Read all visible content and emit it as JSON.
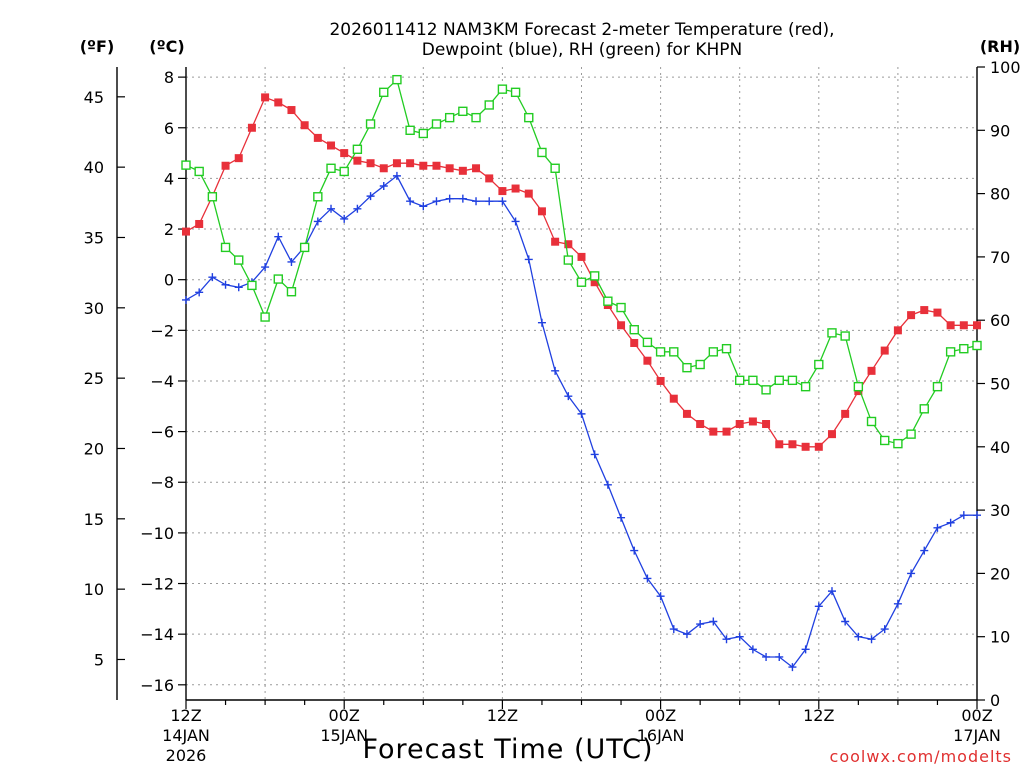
{
  "chart_data": {
    "type": "line",
    "title_line1": "2026011412 NAM3KM Forecast 2-meter Temperature (red),",
    "title_line2": "Dewpoint (blue), RH (green) for KHPN",
    "xlabel": "Forecast Time (UTC)",
    "watermark": "coolwx.com/modelts",
    "left_unit_f": "(ºF)",
    "left_unit_c": "(ºC)",
    "right_unit": "(RH)",
    "hours_range": [
      0,
      60
    ],
    "ylim_c": [
      -16.6,
      8.4
    ],
    "ylim_rh": [
      0,
      100
    ],
    "c_ticks": [
      8,
      6,
      4,
      2,
      0,
      -2,
      -4,
      -6,
      -8,
      -10,
      -12,
      -14,
      -16
    ],
    "c_tick_labels": [
      "8",
      "6",
      "4",
      "2",
      "0",
      "−2",
      "−4",
      "−6",
      "−8",
      "−10",
      "−12",
      "−14",
      "−16"
    ],
    "f_ticks": [
      45,
      40,
      35,
      30,
      25,
      20,
      15,
      10,
      5
    ],
    "f_tick_labels": [
      "45",
      "40",
      "35",
      "30",
      "25",
      "20",
      "15",
      "10",
      "5"
    ],
    "rh_ticks": [
      100,
      90,
      80,
      70,
      60,
      50,
      40,
      30,
      20,
      10,
      0
    ],
    "rh_tick_labels": [
      "100",
      "90",
      "80",
      "70",
      "60",
      "50",
      "40",
      "30",
      "20",
      "10",
      "0"
    ],
    "x_ticks": [
      {
        "hour": 0,
        "label": "12Z",
        "date": "14JAN",
        "year": "2026"
      },
      {
        "hour": 12,
        "label": "00Z",
        "date": "15JAN",
        "year": ""
      },
      {
        "hour": 24,
        "label": "12Z",
        "date": "",
        "year": ""
      },
      {
        "hour": 36,
        "label": "00Z",
        "date": "16JAN",
        "year": ""
      },
      {
        "hour": 48,
        "label": "12Z",
        "date": "",
        "year": ""
      },
      {
        "hour": 60,
        "label": "00Z",
        "date": "17JAN",
        "year": ""
      }
    ],
    "series": [
      {
        "name": "2-meter Temperature",
        "axis": "celsius",
        "color": "#e8303a",
        "marker": "filled-square",
        "x": [
          0,
          1,
          2,
          3,
          4,
          5,
          6,
          7,
          8,
          9,
          10,
          11,
          12,
          13,
          14,
          15,
          16,
          17,
          18,
          19,
          20,
          21,
          22,
          23,
          24,
          25,
          26,
          27,
          28,
          29,
          30,
          31,
          32,
          33,
          34,
          35,
          36,
          37,
          38,
          39,
          40,
          41,
          42,
          43,
          44,
          45,
          46,
          47,
          48,
          49,
          50,
          51,
          52,
          53,
          54,
          55,
          56,
          57,
          58,
          59,
          60
        ],
        "values": [
          1.9,
          2.2,
          3.3,
          4.5,
          4.8,
          6.0,
          7.2,
          7.0,
          6.7,
          6.1,
          5.6,
          5.3,
          5.0,
          4.7,
          4.6,
          4.4,
          4.6,
          4.6,
          4.5,
          4.5,
          4.4,
          4.3,
          4.4,
          4.0,
          3.5,
          3.6,
          3.4,
          2.7,
          1.5,
          1.4,
          0.9,
          -0.1,
          -1.0,
          -1.8,
          -2.5,
          -3.2,
          -4.0,
          -4.7,
          -5.3,
          -5.7,
          -6.0,
          -6.0,
          -5.7,
          -5.6,
          -5.7,
          -6.5,
          -6.5,
          -6.6,
          -6.6,
          -6.1,
          -5.3,
          -4.4,
          -3.6,
          -2.8,
          -2.0,
          -1.4,
          -1.2,
          -1.3,
          -1.8,
          -1.8,
          -1.8
        ]
      },
      {
        "name": "Dewpoint",
        "axis": "celsius",
        "color": "#2040e0",
        "marker": "plus",
        "x": [
          0,
          1,
          2,
          3,
          4,
          5,
          6,
          7,
          8,
          9,
          10,
          11,
          12,
          13,
          14,
          15,
          16,
          17,
          18,
          19,
          20,
          21,
          22,
          23,
          24,
          25,
          26,
          27,
          28,
          29,
          30,
          31,
          32,
          33,
          34,
          35,
          36,
          37,
          38,
          39,
          40,
          41,
          42,
          43,
          44,
          45,
          46,
          47,
          48,
          49,
          50,
          51,
          52,
          53,
          54,
          55,
          56,
          57,
          58,
          59,
          60
        ],
        "values": [
          -0.8,
          -0.5,
          0.1,
          -0.2,
          -0.3,
          -0.1,
          0.5,
          1.7,
          0.7,
          1.3,
          2.3,
          2.8,
          2.4,
          2.8,
          3.3,
          3.7,
          4.1,
          3.1,
          2.9,
          3.1,
          3.2,
          3.2,
          3.1,
          3.1,
          3.1,
          2.3,
          0.8,
          -1.7,
          -3.6,
          -4.6,
          -5.3,
          -6.9,
          -8.1,
          -9.4,
          -10.7,
          -11.8,
          -12.5,
          -13.8,
          -14.0,
          -13.6,
          -13.5,
          -14.2,
          -14.1,
          -14.6,
          -14.9,
          -14.9,
          -15.3,
          -14.6,
          -12.9,
          -12.3,
          -13.5,
          -14.1,
          -14.2,
          -13.8,
          -12.8,
          -11.6,
          -10.7,
          -9.8,
          -9.6,
          -9.3,
          -9.3
        ]
      },
      {
        "name": "Relative Humidity",
        "axis": "rh",
        "color": "#22cc22",
        "marker": "open-square",
        "x": [
          0,
          1,
          2,
          3,
          4,
          5,
          6,
          7,
          8,
          9,
          10,
          11,
          12,
          13,
          14,
          15,
          16,
          17,
          18,
          19,
          20,
          21,
          22,
          23,
          24,
          25,
          26,
          27,
          28,
          29,
          30,
          31,
          32,
          33,
          34,
          35,
          36,
          37,
          38,
          39,
          40,
          41,
          42,
          43,
          44,
          45,
          46,
          47,
          48,
          49,
          50,
          51,
          52,
          53,
          54,
          55,
          56,
          57,
          58,
          59,
          60
        ],
        "values": [
          84.5,
          83.5,
          79.5,
          71.5,
          69.5,
          65.5,
          60.5,
          66.5,
          64.5,
          71.5,
          79.5,
          84.0,
          83.5,
          87.0,
          91.0,
          96.0,
          98.0,
          90.0,
          89.5,
          91.0,
          92.0,
          93.0,
          92.0,
          94.0,
          96.5,
          96.0,
          92.0,
          86.5,
          84.0,
          69.5,
          66.0,
          67.0,
          63.0,
          62.0,
          58.5,
          56.5,
          55.0,
          55.0,
          52.5,
          53.0,
          55.0,
          55.5,
          50.5,
          50.5,
          49.0,
          50.5,
          50.5,
          49.5,
          53.0,
          58.0,
          57.5,
          49.5,
          44.0,
          41.0,
          40.5,
          42.0,
          46.0,
          49.5,
          55.0,
          55.5,
          56.0
        ]
      }
    ]
  }
}
